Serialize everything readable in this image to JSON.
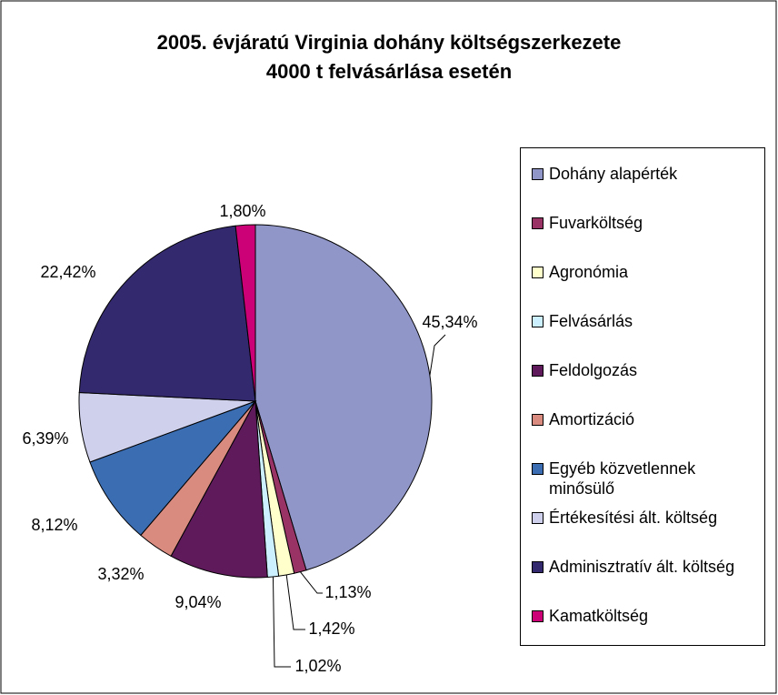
{
  "chart_data": {
    "type": "pie",
    "title": [
      "2005. évjáratú Virginia dohány költségszerkezete",
      "4000 t felvásárlása esetén"
    ],
    "categories": [
      "Dohány alapérték",
      "Fuvarköltség",
      "Agronómia",
      "Felvásárlás",
      "Feldolgozás",
      "Amortizáció",
      "Egyéb közvetlennek minősülő",
      "Értékesítési ált. költség",
      "Adminisztratív ált. költség",
      "Kamatköltség"
    ],
    "values": [
      45.34,
      1.13,
      1.42,
      1.02,
      9.04,
      3.32,
      8.12,
      6.39,
      22.42,
      1.8
    ],
    "value_labels": [
      "45,34%",
      "1,13%",
      "1,42%",
      "1,02%",
      "9,04%",
      "3,32%",
      "8,12%",
      "6,39%",
      "22,42%",
      "1,80%"
    ],
    "colors": [
      "#9196c9",
      "#993366",
      "#ffffcc",
      "#ccf0ff",
      "#5e1a5a",
      "#d98b80",
      "#3b6db3",
      "#cfd0ec",
      "#33296e",
      "#cc0077"
    ],
    "legend": "right"
  }
}
